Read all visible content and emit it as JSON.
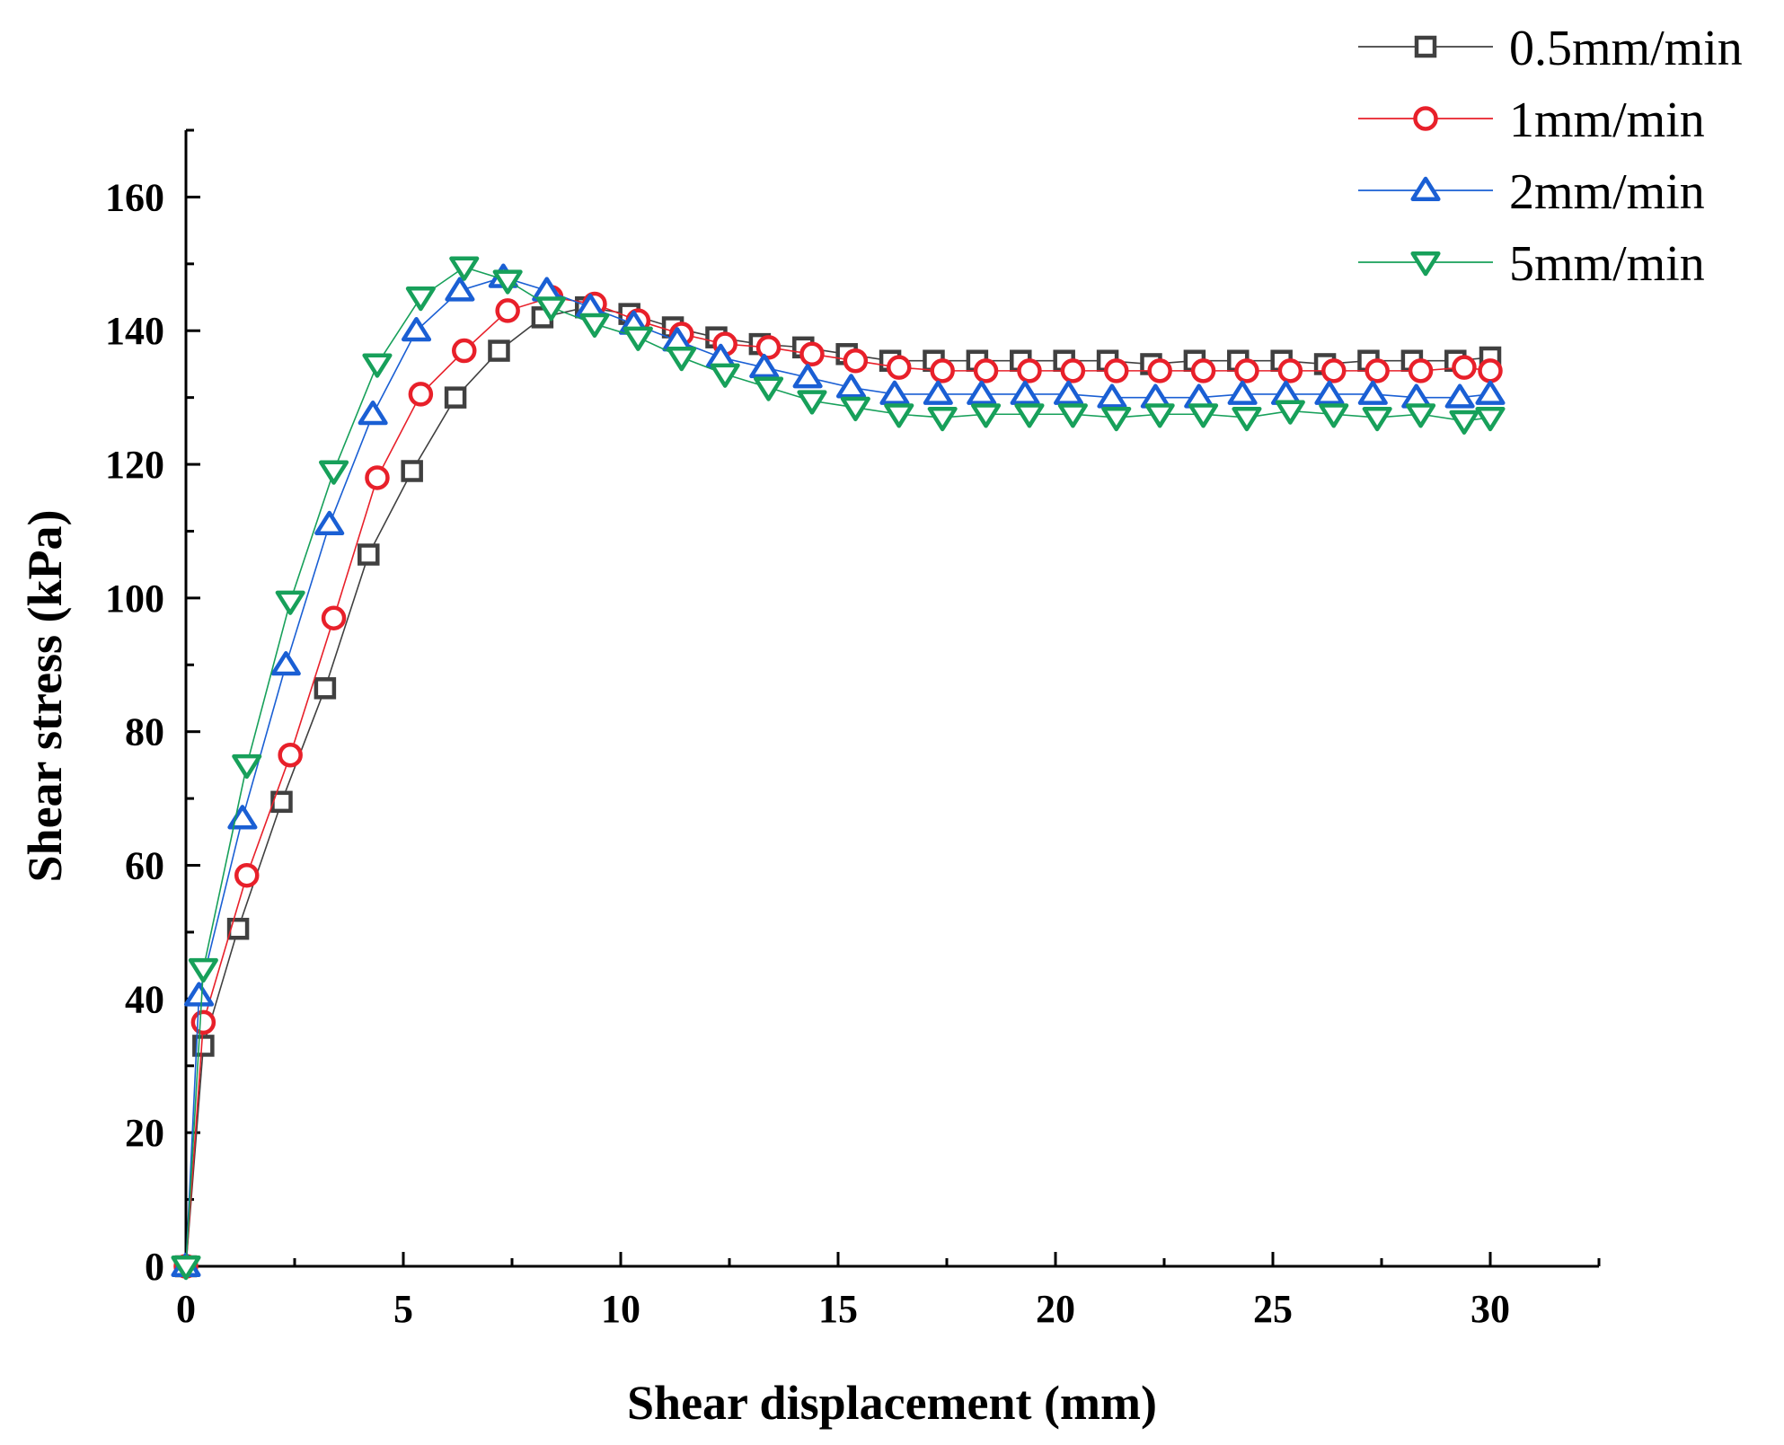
{
  "chart_data": {
    "type": "line",
    "xlabel": "Shear displacement (mm)",
    "ylabel": "Shear stress (kPa)",
    "xlim": [
      0,
      32.5
    ],
    "ylim": [
      0,
      170
    ],
    "xticks": [
      0,
      5,
      10,
      15,
      20,
      25,
      30
    ],
    "yticks": [
      0,
      20,
      40,
      60,
      80,
      100,
      120,
      140,
      160
    ],
    "grid": false,
    "legend_position": "top-right",
    "series": [
      {
        "name": "0.5mm/min",
        "color": "#404040",
        "marker": "square",
        "x": [
          0,
          0.4,
          1.2,
          2.2,
          3.2,
          4.2,
          5.2,
          6.2,
          7.2,
          8.2,
          9.2,
          10.2,
          11.2,
          12.2,
          13.2,
          14.2,
          15.2,
          16.2,
          17.2,
          18.2,
          19.2,
          20.2,
          21.2,
          22.2,
          23.2,
          24.2,
          25.2,
          26.2,
          27.2,
          28.2,
          29.2,
          30.0
        ],
        "y": [
          0,
          33,
          50.5,
          69.5,
          86.5,
          106.5,
          119,
          130,
          137,
          142,
          143.5,
          142.5,
          140.5,
          139,
          138,
          137.5,
          136.5,
          135.5,
          135.5,
          135.5,
          135.5,
          135.5,
          135.5,
          135,
          135.5,
          135.5,
          135.5,
          135,
          135.5,
          135.5,
          135.5,
          136
        ]
      },
      {
        "name": "1mm/min",
        "color": "#e8202a",
        "marker": "circle",
        "x": [
          0,
          0.4,
          1.4,
          2.4,
          3.4,
          4.4,
          5.4,
          6.4,
          7.4,
          8.4,
          9.4,
          10.4,
          11.4,
          12.4,
          13.4,
          14.4,
          15.4,
          16.4,
          17.4,
          18.4,
          19.4,
          20.4,
          21.4,
          22.4,
          23.4,
          24.4,
          25.4,
          26.4,
          27.4,
          28.4,
          29.4,
          30.0
        ],
        "y": [
          0,
          36.5,
          58.5,
          76.5,
          97,
          118,
          130.5,
          137,
          143,
          145,
          144,
          141.5,
          139.5,
          138,
          137.5,
          136.5,
          135.5,
          134.5,
          134,
          134,
          134,
          134,
          134,
          134,
          134,
          134,
          134,
          134,
          134,
          134,
          134.5,
          134
        ]
      },
      {
        "name": "2mm/min",
        "color": "#1a5fd4",
        "marker": "triangle-up",
        "x": [
          0,
          0.3,
          1.3,
          2.3,
          3.3,
          4.3,
          5.3,
          6.3,
          7.3,
          8.3,
          9.3,
          10.3,
          11.3,
          12.3,
          13.3,
          14.3,
          15.3,
          16.3,
          17.3,
          18.3,
          19.3,
          20.3,
          21.3,
          22.3,
          23.3,
          24.3,
          25.3,
          26.3,
          27.3,
          28.3,
          29.3,
          30.0
        ],
        "y": [
          0,
          40.5,
          67,
          90,
          111,
          127.5,
          140,
          146,
          148,
          146,
          143.5,
          141,
          138.5,
          136,
          134.5,
          133,
          131.5,
          130.5,
          130.5,
          130.5,
          130.5,
          130.5,
          130,
          130,
          130,
          130.5,
          130.5,
          130.5,
          130.5,
          130,
          130,
          130.5
        ]
      },
      {
        "name": "5mm/min",
        "color": "#17a05a",
        "marker": "triangle-down",
        "x": [
          0,
          0.4,
          1.4,
          2.4,
          3.4,
          4.4,
          5.4,
          6.4,
          7.4,
          8.4,
          9.4,
          10.4,
          11.4,
          12.4,
          13.4,
          14.4,
          15.4,
          16.4,
          17.4,
          18.4,
          19.4,
          20.4,
          21.4,
          22.4,
          23.4,
          24.4,
          25.4,
          26.4,
          27.4,
          28.4,
          29.4,
          30.0
        ],
        "y": [
          0,
          44.5,
          75,
          99.5,
          119,
          135,
          145,
          149.5,
          147.5,
          143.5,
          141,
          139,
          136,
          133.5,
          131.5,
          129.5,
          128.5,
          127.5,
          127,
          127.5,
          127.5,
          127.5,
          127,
          127.5,
          127.5,
          127,
          128,
          127.5,
          127,
          127.5,
          126.5,
          127
        ]
      }
    ]
  }
}
